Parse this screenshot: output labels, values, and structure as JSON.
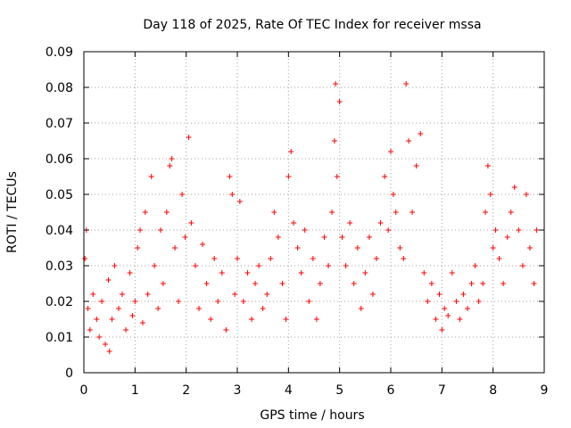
{
  "chart_data": {
    "type": "scatter",
    "title": "Day 118 of 2025, Rate Of TEC Index for receiver mssa",
    "xlabel": "GPS time / hours",
    "ylabel": "ROTI / TECUs",
    "xlim": [
      0,
      9
    ],
    "ylim": [
      0,
      0.09
    ],
    "x_ticks": [
      "0",
      "1",
      "2",
      "3",
      "4",
      "5",
      "6",
      "7",
      "8",
      "9"
    ],
    "y_ticks": [
      "0",
      "0.01",
      "0.02",
      "0.03",
      "0.04",
      "0.05",
      "0.06",
      "0.07",
      "0.08",
      "0.09"
    ],
    "grid": true,
    "marker": "plus",
    "color": "#ff0000",
    "series": [
      {
        "x": [
          0.02,
          0.05,
          0.08,
          0.12,
          0.18,
          0.25,
          0.3,
          0.35,
          0.42,
          0.48,
          0.5,
          0.55,
          0.6,
          0.68,
          0.75,
          0.82,
          0.9,
          0.95,
          1.0,
          1.05,
          1.1,
          1.15,
          1.2,
          1.25,
          1.32,
          1.38,
          1.45,
          1.5,
          1.55,
          1.62,
          1.68,
          1.72,
          1.78,
          1.85,
          1.92,
          1.98,
          2.05,
          2.1,
          2.18,
          2.25,
          2.32,
          2.4,
          2.48,
          2.55,
          2.62,
          2.7,
          2.78,
          2.85,
          2.9,
          2.95,
          3.0,
          3.05,
          3.12,
          3.2,
          3.28,
          3.35,
          3.42,
          3.5,
          3.58,
          3.65,
          3.72,
          3.8,
          3.88,
          3.95,
          4.0,
          4.05,
          4.1,
          4.18,
          4.25,
          4.32,
          4.4,
          4.48,
          4.55,
          4.62,
          4.7,
          4.78,
          4.85,
          4.9,
          4.92,
          4.95,
          5.0,
          5.05,
          5.12,
          5.2,
          5.28,
          5.35,
          5.42,
          5.5,
          5.58,
          5.65,
          5.72,
          5.8,
          5.88,
          5.95,
          6.0,
          6.05,
          6.1,
          6.18,
          6.25,
          6.3,
          6.35,
          6.42,
          6.5,
          6.58,
          6.65,
          6.72,
          6.8,
          6.88,
          6.95,
          7.0,
          7.05,
          7.12,
          7.2,
          7.28,
          7.35,
          7.42,
          7.5,
          7.58,
          7.65,
          7.72,
          7.8,
          7.85,
          7.9,
          7.95,
          8.0,
          8.05,
          8.12,
          8.2,
          8.28,
          8.35,
          8.42,
          8.5,
          8.58,
          8.65,
          8.72,
          8.8,
          8.85
        ],
        "y": [
          0.032,
          0.04,
          0.018,
          0.012,
          0.022,
          0.015,
          0.01,
          0.02,
          0.008,
          0.026,
          0.006,
          0.015,
          0.03,
          0.018,
          0.022,
          0.012,
          0.028,
          0.016,
          0.02,
          0.035,
          0.04,
          0.014,
          0.045,
          0.022,
          0.055,
          0.03,
          0.018,
          0.04,
          0.025,
          0.045,
          0.058,
          0.06,
          0.035,
          0.02,
          0.05,
          0.038,
          0.066,
          0.042,
          0.03,
          0.018,
          0.036,
          0.025,
          0.015,
          0.032,
          0.02,
          0.028,
          0.012,
          0.055,
          0.05,
          0.022,
          0.032,
          0.048,
          0.02,
          0.028,
          0.015,
          0.025,
          0.03,
          0.018,
          0.022,
          0.032,
          0.045,
          0.038,
          0.025,
          0.015,
          0.055,
          0.062,
          0.042,
          0.035,
          0.028,
          0.04,
          0.02,
          0.032,
          0.015,
          0.025,
          0.038,
          0.03,
          0.045,
          0.065,
          0.081,
          0.055,
          0.076,
          0.038,
          0.03,
          0.042,
          0.025,
          0.035,
          0.018,
          0.028,
          0.038,
          0.022,
          0.032,
          0.042,
          0.055,
          0.04,
          0.062,
          0.05,
          0.045,
          0.035,
          0.032,
          0.081,
          0.065,
          0.045,
          0.058,
          0.067,
          0.028,
          0.02,
          0.025,
          0.015,
          0.022,
          0.012,
          0.018,
          0.016,
          0.028,
          0.02,
          0.015,
          0.022,
          0.018,
          0.025,
          0.03,
          0.02,
          0.025,
          0.045,
          0.058,
          0.05,
          0.035,
          0.04,
          0.032,
          0.025,
          0.038,
          0.045,
          0.052,
          0.04,
          0.03,
          0.05,
          0.035,
          0.025,
          0.04
        ]
      }
    ]
  }
}
